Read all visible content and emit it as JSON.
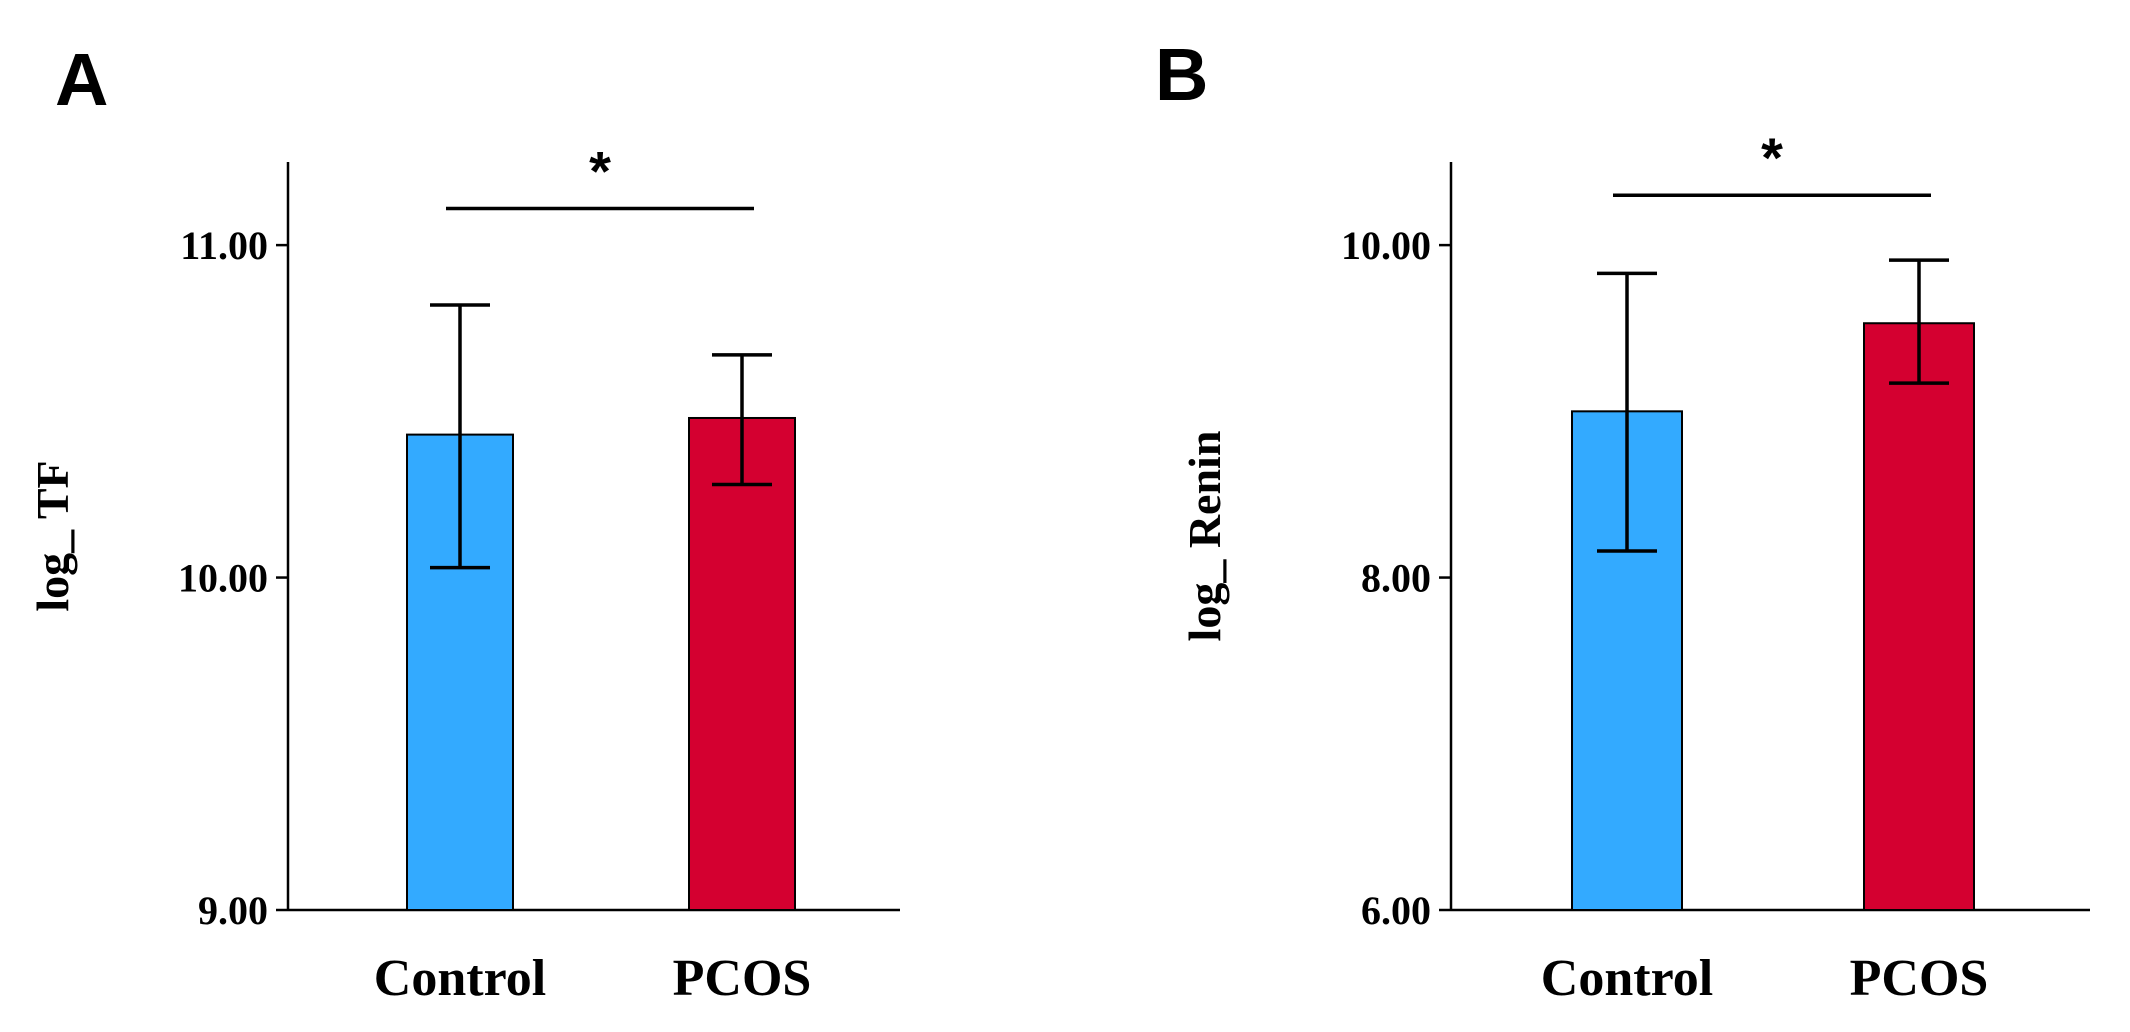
{
  "chart_data": [
    {
      "panel": "A",
      "type": "bar",
      "ylabel": "log_ TF",
      "xlabel": "",
      "categories": [
        "Control",
        "PCOS"
      ],
      "values": [
        10.43,
        10.48
      ],
      "error_low": [
        10.03,
        10.28
      ],
      "error_high": [
        10.82,
        10.67
      ],
      "colors": [
        "#33aaff",
        "#d40030"
      ],
      "ylim": [
        9.0,
        11.25
      ],
      "yticks": [
        9.0,
        10.0,
        11.0
      ],
      "ytick_labels": [
        "9.00",
        "10.00",
        "11.00"
      ],
      "significance": {
        "label": "*",
        "between": [
          "Control",
          "PCOS"
        ],
        "level": 11.11
      }
    },
    {
      "panel": "B",
      "type": "bar",
      "ylabel": "log_ Renin",
      "xlabel": "",
      "categories": [
        "Control",
        "PCOS"
      ],
      "values": [
        9.0,
        9.53
      ],
      "error_low": [
        8.16,
        9.17
      ],
      "error_high": [
        9.83,
        9.91
      ],
      "colors": [
        "#33aaff",
        "#d40030"
      ],
      "ylim": [
        6.0,
        10.5
      ],
      "yticks": [
        6.0,
        8.0,
        10.0
      ],
      "ytick_labels": [
        "6.00",
        "8.00",
        "10.00"
      ],
      "significance": {
        "label": "*",
        "between": [
          "Control",
          "PCOS"
        ],
        "level": 10.3
      }
    }
  ]
}
